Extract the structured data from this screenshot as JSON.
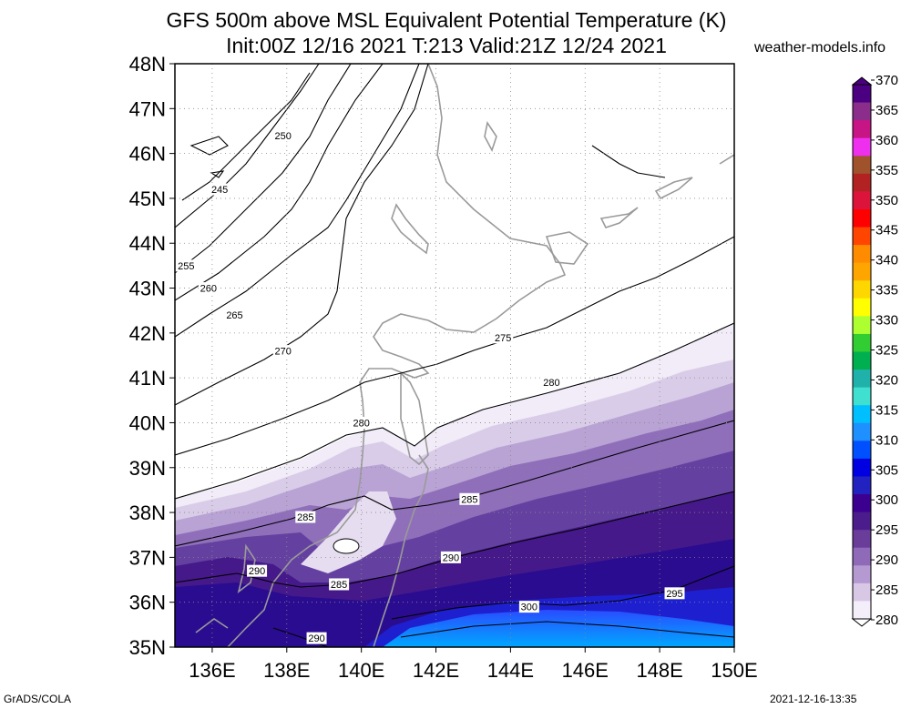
{
  "title": {
    "line1": "GFS 500m above MSL Equivalent Potential Temperature (K)",
    "line2": "Init:00Z 12/16 2021 T:213 Valid:21Z 12/24 2021"
  },
  "source_label": "weather-models.info",
  "footer": {
    "left": "GrADS/COLA",
    "right": "2021-12-16-13:35"
  },
  "map": {
    "lat_range": [
      35,
      48
    ],
    "lon_range": [
      135,
      150
    ],
    "lat_ticks": [
      {
        "v": 48,
        "label": "48N"
      },
      {
        "v": 47,
        "label": "47N"
      },
      {
        "v": 46,
        "label": "46N"
      },
      {
        "v": 45,
        "label": "45N"
      },
      {
        "v": 44,
        "label": "44N"
      },
      {
        "v": 43,
        "label": "43N"
      },
      {
        "v": 42,
        "label": "42N"
      },
      {
        "v": 41,
        "label": "41N"
      },
      {
        "v": 40,
        "label": "40N"
      },
      {
        "v": 39,
        "label": "39N"
      },
      {
        "v": 38,
        "label": "38N"
      },
      {
        "v": 37,
        "label": "37N"
      },
      {
        "v": 36,
        "label": "36N"
      },
      {
        "v": 35,
        "label": "35N"
      }
    ],
    "lon_ticks": [
      {
        "v": 136,
        "label": "136E"
      },
      {
        "v": 138,
        "label": "138E"
      },
      {
        "v": 140,
        "label": "140E"
      },
      {
        "v": 142,
        "label": "142E"
      },
      {
        "v": 144,
        "label": "144E"
      },
      {
        "v": 146,
        "label": "146E"
      },
      {
        "v": 148,
        "label": "148E"
      },
      {
        "v": 150,
        "label": "150E"
      }
    ]
  },
  "colorbar": {
    "labels": [
      "370",
      "365",
      "360",
      "355",
      "350",
      "345",
      "340",
      "335",
      "330",
      "325",
      "320",
      "315",
      "310",
      "305",
      "300",
      "295",
      "290",
      "285",
      "280"
    ],
    "colors": [
      "#4b0082",
      "#8b2e8b",
      "#c71585",
      "#ee30ee",
      "#a0522d",
      "#b22222",
      "#dc143c",
      "#ff0000",
      "#ff4500",
      "#ff8c00",
      "#ffa500",
      "#ffd700",
      "#ffff00",
      "#adff2f",
      "#32cd32",
      "#00b050",
      "#20b2aa",
      "#40e0d0",
      "#00bfff",
      "#1e90ff",
      "#0050ff",
      "#0000e0",
      "#2222c0",
      "#3b0090",
      "#4b1c8c",
      "#6a3d9a",
      "#8e6ab8",
      "#b49ad0",
      "#d8c8e6",
      "#f4eefa"
    ]
  },
  "contours": [
    {
      "label": "245",
      "lon": 136.2,
      "lat": 45.2
    },
    {
      "label": "250",
      "lon": 137.9,
      "lat": 46.4
    },
    {
      "label": "255",
      "lon": 135.3,
      "lat": 43.5
    },
    {
      "label": "260",
      "lon": 135.9,
      "lat": 43.0
    },
    {
      "label": "265",
      "lon": 136.6,
      "lat": 42.4
    },
    {
      "label": "270",
      "lon": 137.9,
      "lat": 41.6
    },
    {
      "label": "275",
      "lon": 143.8,
      "lat": 41.9
    },
    {
      "label": "280",
      "lon": 140.0,
      "lat": 40.0
    },
    {
      "label": "280",
      "lon": 145.1,
      "lat": 40.9
    },
    {
      "label": "285",
      "lon": 138.5,
      "lat": 37.9
    },
    {
      "label": "285",
      "lon": 142.9,
      "lat": 38.3
    },
    {
      "label": "285",
      "lon": 139.4,
      "lat": 36.4
    },
    {
      "label": "290",
      "lon": 137.2,
      "lat": 36.7
    },
    {
      "label": "290",
      "lon": 142.4,
      "lat": 37.0
    },
    {
      "label": "290",
      "lon": 138.8,
      "lat": 35.2
    },
    {
      "label": "295",
      "lon": 148.4,
      "lat": 36.2
    },
    {
      "label": "300",
      "lon": 144.5,
      "lat": 35.9
    }
  ]
}
